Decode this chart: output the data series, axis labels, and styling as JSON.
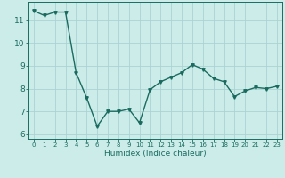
{
  "x": [
    0,
    1,
    2,
    3,
    4,
    5,
    6,
    7,
    8,
    9,
    10,
    11,
    12,
    13,
    14,
    15,
    16,
    17,
    18,
    19,
    20,
    21,
    22,
    23
  ],
  "y": [
    11.4,
    11.2,
    11.35,
    11.35,
    8.7,
    7.6,
    6.35,
    7.0,
    7.0,
    7.1,
    6.5,
    7.95,
    8.3,
    8.5,
    8.7,
    9.05,
    8.85,
    8.45,
    8.3,
    7.65,
    7.9,
    8.05,
    8.0,
    8.1
  ],
  "line_color": "#1a6b5e",
  "marker": "v",
  "markersize": 2.5,
  "linewidth": 1.0,
  "xlabel": "Humidex (Indice chaleur)",
  "ylim": [
    5.8,
    11.8
  ],
  "xlim": [
    -0.5,
    23.5
  ],
  "yticks": [
    6,
    7,
    8,
    9,
    10,
    11
  ],
  "xticks": [
    0,
    1,
    2,
    3,
    4,
    5,
    6,
    7,
    8,
    9,
    10,
    11,
    12,
    13,
    14,
    15,
    16,
    17,
    18,
    19,
    20,
    21,
    22,
    23
  ],
  "bg_color": "#ccecea",
  "grid_color": "#aad4d1",
  "axis_color": "#1a6b5e",
  "tick_color": "#1a6b5e",
  "xlabel_fontsize": 6.5,
  "ytick_fontsize": 6.5,
  "xtick_fontsize": 5.0
}
